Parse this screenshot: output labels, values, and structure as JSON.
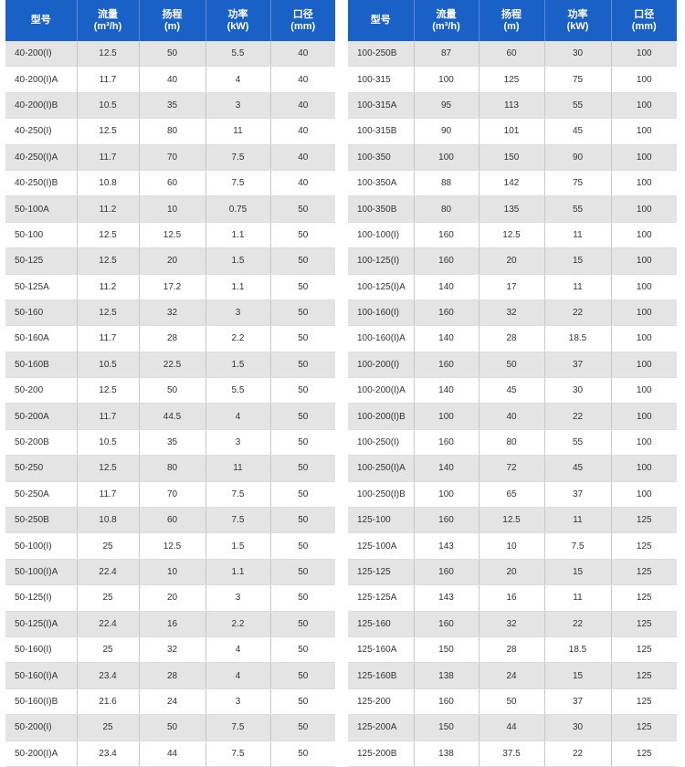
{
  "headers": [
    {
      "line1": "型号",
      "line2": ""
    },
    {
      "line1": "流量",
      "line2": "(m³/h)"
    },
    {
      "line1": "扬程",
      "line2": "(m)"
    },
    {
      "line1": "功率",
      "line2": "(kW)"
    },
    {
      "line1": "口径",
      "line2": "(mm)"
    }
  ],
  "left_rows": [
    [
      "40-200(I)",
      "12.5",
      "50",
      "5.5",
      "40"
    ],
    [
      "40-200(I)A",
      "11.7",
      "40",
      "4",
      "40"
    ],
    [
      "40-200(I)B",
      "10.5",
      "35",
      "3",
      "40"
    ],
    [
      "40-250(I)",
      "12.5",
      "80",
      "11",
      "40"
    ],
    [
      "40-250(I)A",
      "11.7",
      "70",
      "7.5",
      "40"
    ],
    [
      "40-250(I)B",
      "10.8",
      "60",
      "7.5",
      "40"
    ],
    [
      "50-100A",
      "11.2",
      "10",
      "0.75",
      "50"
    ],
    [
      "50-100",
      "12.5",
      "12.5",
      "1.1",
      "50"
    ],
    [
      "50-125",
      "12.5",
      "20",
      "1.5",
      "50"
    ],
    [
      "50-125A",
      "11.2",
      "17.2",
      "1.1",
      "50"
    ],
    [
      "50-160",
      "12.5",
      "32",
      "3",
      "50"
    ],
    [
      "50-160A",
      "11.7",
      "28",
      "2.2",
      "50"
    ],
    [
      "50-160B",
      "10.5",
      "22.5",
      "1.5",
      "50"
    ],
    [
      "50-200",
      "12.5",
      "50",
      "5.5",
      "50"
    ],
    [
      "50-200A",
      "11.7",
      "44.5",
      "4",
      "50"
    ],
    [
      "50-200B",
      "10.5",
      "35",
      "3",
      "50"
    ],
    [
      "50-250",
      "12.5",
      "80",
      "11",
      "50"
    ],
    [
      "50-250A",
      "11.7",
      "70",
      "7.5",
      "50"
    ],
    [
      "50-250B",
      "10.8",
      "60",
      "7.5",
      "50"
    ],
    [
      "50-100(I)",
      "25",
      "12.5",
      "1.5",
      "50"
    ],
    [
      "50-100(I)A",
      "22.4",
      "10",
      "1.1",
      "50"
    ],
    [
      "50-125(I)",
      "25",
      "20",
      "3",
      "50"
    ],
    [
      "50-125(I)A",
      "22.4",
      "16",
      "2.2",
      "50"
    ],
    [
      "50-160(I)",
      "25",
      "32",
      "4",
      "50"
    ],
    [
      "50-160(I)A",
      "23.4",
      "28",
      "4",
      "50"
    ],
    [
      "50-160(I)B",
      "21.6",
      "24",
      "3",
      "50"
    ],
    [
      "50-200(I)",
      "25",
      "50",
      "7.5",
      "50"
    ],
    [
      "50-200(I)A",
      "23.4",
      "44",
      "7.5",
      "50"
    ]
  ],
  "right_rows": [
    [
      "100-250B",
      "87",
      "60",
      "30",
      "100"
    ],
    [
      "100-315",
      "100",
      "125",
      "75",
      "100"
    ],
    [
      "100-315A",
      "95",
      "113",
      "55",
      "100"
    ],
    [
      "100-315B",
      "90",
      "101",
      "45",
      "100"
    ],
    [
      "100-350",
      "100",
      "150",
      "90",
      "100"
    ],
    [
      "100-350A",
      "88",
      "142",
      "75",
      "100"
    ],
    [
      "100-350B",
      "80",
      "135",
      "55",
      "100"
    ],
    [
      "100-100(I)",
      "160",
      "12.5",
      "11",
      "100"
    ],
    [
      "100-125(I)",
      "160",
      "20",
      "15",
      "100"
    ],
    [
      "100-125(I)A",
      "140",
      "17",
      "11",
      "100"
    ],
    [
      "100-160(I)",
      "160",
      "32",
      "22",
      "100"
    ],
    [
      "100-160(I)A",
      "140",
      "28",
      "18.5",
      "100"
    ],
    [
      "100-200(I)",
      "160",
      "50",
      "37",
      "100"
    ],
    [
      "100-200(I)A",
      "140",
      "45",
      "30",
      "100"
    ],
    [
      "100-200(I)B",
      "100",
      "40",
      "22",
      "100"
    ],
    [
      "100-250(I)",
      "160",
      "80",
      "55",
      "100"
    ],
    [
      "100-250(I)A",
      "140",
      "72",
      "45",
      "100"
    ],
    [
      "100-250(I)B",
      "100",
      "65",
      "37",
      "100"
    ],
    [
      "125-100",
      "160",
      "12.5",
      "11",
      "125"
    ],
    [
      "125-100A",
      "143",
      "10",
      "7.5",
      "125"
    ],
    [
      "125-125",
      "160",
      "20",
      "15",
      "125"
    ],
    [
      "125-125A",
      "143",
      "16",
      "11",
      "125"
    ],
    [
      "125-160",
      "160",
      "32",
      "22",
      "125"
    ],
    [
      "125-160A",
      "150",
      "28",
      "18.5",
      "125"
    ],
    [
      "125-160B",
      "138",
      "24",
      "15",
      "125"
    ],
    [
      "125-200",
      "160",
      "50",
      "37",
      "125"
    ],
    [
      "125-200A",
      "150",
      "44",
      "30",
      "125"
    ],
    [
      "125-200B",
      "138",
      "37.5",
      "22",
      "125"
    ]
  ]
}
